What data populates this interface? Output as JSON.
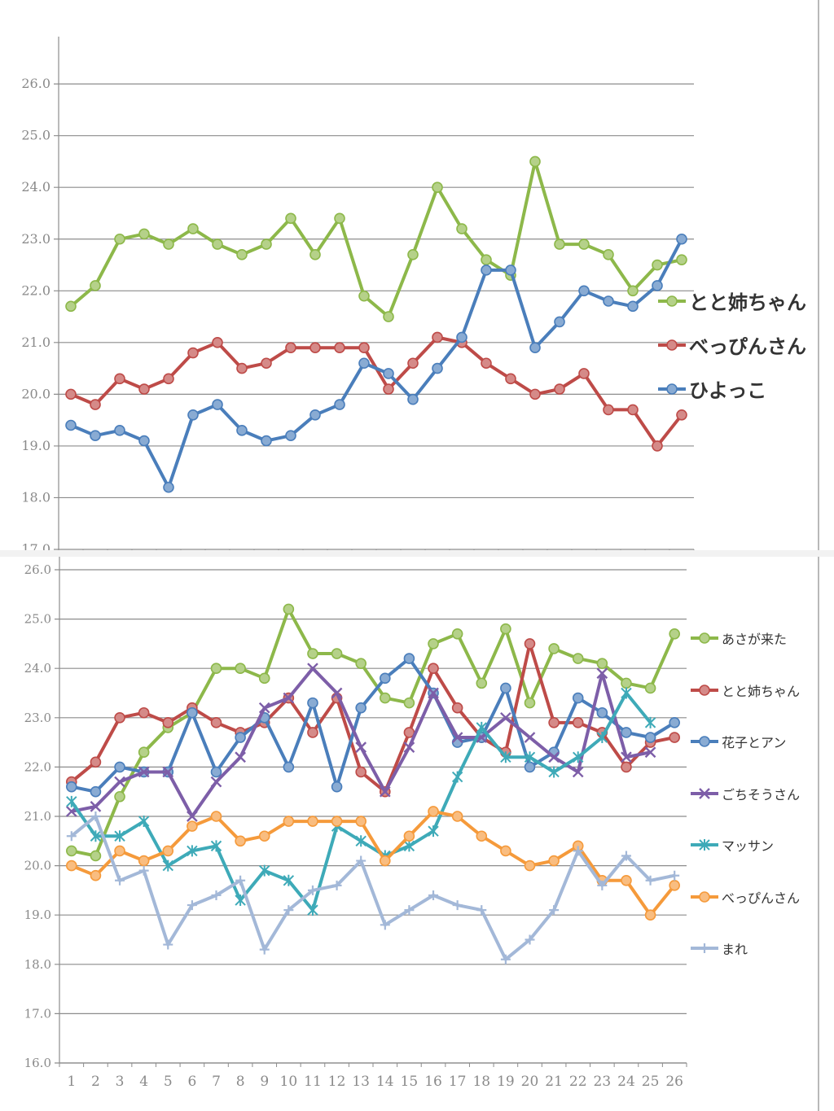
{
  "chart_data": [
    {
      "type": "line",
      "x": [
        1,
        2,
        3,
        4,
        5,
        6,
        7,
        8,
        9,
        10,
        11,
        12,
        13,
        14,
        15,
        16,
        17,
        18,
        19,
        20,
        21,
        22,
        23,
        24,
        25,
        26
      ],
      "yticks": [
        "17.0",
        "18.0",
        "19.0",
        "20.0",
        "21.0",
        "22.0",
        "23.0",
        "24.0",
        "25.0",
        "26.0"
      ],
      "ylim": [
        17.0,
        26.6
      ],
      "grid": true,
      "legend_position": "right",
      "marker": "circle",
      "series": [
        {
          "name": "とと姉ちゃん",
          "color": "#8db84a",
          "values": [
            21.7,
            22.1,
            23.0,
            23.1,
            22.9,
            23.2,
            22.9,
            22.7,
            22.9,
            23.4,
            22.7,
            23.4,
            21.9,
            21.5,
            22.7,
            24.0,
            23.2,
            22.6,
            22.3,
            24.5,
            22.9,
            22.9,
            22.7,
            22.0,
            22.5,
            22.6
          ]
        },
        {
          "name": "べっぴんさん",
          "color": "#be4b48",
          "values": [
            20.0,
            19.8,
            20.3,
            20.1,
            20.3,
            20.8,
            21.0,
            20.5,
            20.6,
            20.9,
            20.9,
            20.9,
            20.9,
            20.1,
            20.6,
            21.1,
            21.0,
            20.6,
            20.3,
            20.0,
            20.1,
            20.4,
            19.7,
            19.7,
            19.0,
            19.6
          ]
        },
        {
          "name": "ひよっこ",
          "color": "#4a7ebb",
          "values": [
            19.4,
            19.2,
            19.3,
            19.1,
            18.2,
            19.6,
            19.8,
            19.3,
            19.1,
            19.2,
            19.6,
            19.8,
            20.6,
            20.4,
            19.9,
            20.5,
            21.1,
            22.4,
            22.4,
            20.9,
            21.4,
            22.0,
            21.8,
            21.7,
            22.1,
            23.0
          ]
        }
      ]
    },
    {
      "type": "line",
      "x": [
        1,
        2,
        3,
        4,
        5,
        6,
        7,
        8,
        9,
        10,
        11,
        12,
        13,
        14,
        15,
        16,
        17,
        18,
        19,
        20,
        21,
        22,
        23,
        24,
        25,
        26
      ],
      "xticks": [
        "1",
        "2",
        "3",
        "4",
        "5",
        "6",
        "7",
        "8",
        "9",
        "10",
        "11",
        "12",
        "13",
        "14",
        "15",
        "16",
        "17",
        "18",
        "19",
        "20",
        "21",
        "22",
        "23",
        "24",
        "25",
        "26"
      ],
      "yticks": [
        "16.0",
        "17.0",
        "18.0",
        "19.0",
        "20.0",
        "21.0",
        "22.0",
        "23.0",
        "24.0",
        "25.0",
        "26.0"
      ],
      "ylim": [
        16.0,
        26.0
      ],
      "grid": true,
      "legend_position": "right",
      "series": [
        {
          "name": "あさが来た",
          "color": "#8db84a",
          "marker": "circle",
          "values": [
            20.3,
            20.2,
            21.4,
            22.3,
            22.8,
            23.1,
            24.0,
            24.0,
            23.8,
            25.2,
            24.3,
            24.3,
            24.1,
            23.4,
            23.3,
            24.5,
            24.7,
            23.7,
            24.8,
            23.3,
            24.4,
            24.2,
            24.1,
            23.7,
            23.6,
            24.7
          ]
        },
        {
          "name": "とと姉ちゃん",
          "color": "#be4b48",
          "marker": "circle",
          "values": [
            21.7,
            22.1,
            23.0,
            23.1,
            22.9,
            23.2,
            22.9,
            22.7,
            22.9,
            23.4,
            22.7,
            23.4,
            21.9,
            21.5,
            22.7,
            24.0,
            23.2,
            22.6,
            22.3,
            24.5,
            22.9,
            22.9,
            22.7,
            22.0,
            22.5,
            22.6
          ]
        },
        {
          "name": "花子とアン",
          "color": "#4a7ebb",
          "marker": "circle",
          "values": [
            21.6,
            21.5,
            22.0,
            21.9,
            21.9,
            23.1,
            21.9,
            22.6,
            23.0,
            22.0,
            23.3,
            21.6,
            23.2,
            23.8,
            24.2,
            23.5,
            22.5,
            22.6,
            23.6,
            22.0,
            22.3,
            23.4,
            23.1,
            22.7,
            22.6,
            22.9
          ]
        },
        {
          "name": "ごちそうさん",
          "color": "#7d5ea8",
          "marker": "x",
          "values": [
            21.1,
            21.2,
            21.7,
            21.9,
            21.9,
            21.0,
            21.7,
            22.2,
            23.2,
            23.4,
            24.0,
            23.5,
            22.4,
            21.5,
            22.4,
            23.5,
            22.6,
            22.6,
            23.0,
            22.6,
            22.2,
            21.9,
            23.9,
            22.2,
            22.3,
            null
          ]
        },
        {
          "name": "マッサン",
          "color": "#3eaab8",
          "marker": "star",
          "values": [
            21.3,
            20.6,
            20.6,
            20.9,
            20.0,
            20.3,
            20.4,
            19.3,
            19.9,
            19.7,
            19.1,
            20.8,
            20.5,
            20.2,
            20.4,
            20.7,
            21.8,
            22.8,
            22.2,
            22.2,
            21.9,
            22.2,
            22.6,
            23.5,
            22.9,
            null
          ]
        },
        {
          "name": "べっぴんさん",
          "color": "#f59a3b",
          "marker": "circle",
          "values": [
            20.0,
            19.8,
            20.3,
            20.1,
            20.3,
            20.8,
            21.0,
            20.5,
            20.6,
            20.9,
            20.9,
            20.9,
            20.9,
            20.1,
            20.6,
            21.1,
            21.0,
            20.6,
            20.3,
            20.0,
            20.1,
            20.4,
            19.7,
            19.7,
            19.0,
            19.6
          ]
        },
        {
          "name": "まれ",
          "color": "#a3b8d8",
          "marker": "plus",
          "values": [
            20.6,
            21.0,
            19.7,
            19.9,
            18.4,
            19.2,
            19.4,
            19.7,
            18.3,
            19.1,
            19.5,
            19.6,
            20.1,
            18.8,
            19.1,
            19.4,
            19.2,
            19.1,
            18.1,
            18.5,
            19.1,
            20.3,
            19.6,
            20.2,
            19.7,
            19.8
          ]
        }
      ]
    }
  ]
}
